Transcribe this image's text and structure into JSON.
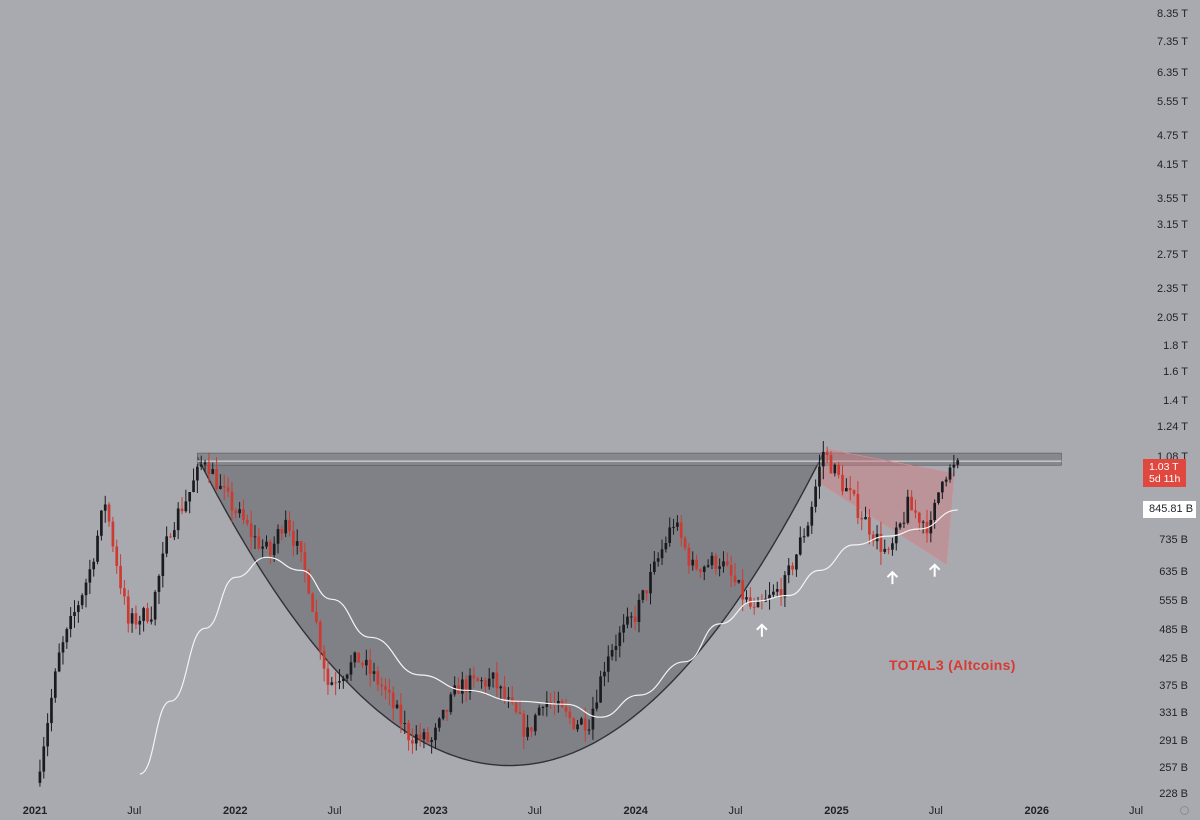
{
  "chart_data": {
    "type": "candlestick",
    "title": "",
    "xlabel": "",
    "ylabel": "",
    "y_scale": "log",
    "ylim": [
      220,
      8700
    ],
    "y_ticks": [
      "8.35 T",
      "7.35 T",
      "6.35 T",
      "5.55 T",
      "4.75 T",
      "4.15 T",
      "3.55 T",
      "3.15 T",
      "2.75 T",
      "2.35 T",
      "2.05 T",
      "1.8 T",
      "1.6 T",
      "1.4 T",
      "1.24 T",
      "1.08 T",
      "735 B",
      "635 B",
      "555 B",
      "485 B",
      "425 B",
      "375 B",
      "331 B",
      "291 B",
      "257 B",
      "228 B"
    ],
    "y_tick_values": [
      8350,
      7350,
      6350,
      5550,
      4750,
      4150,
      3550,
      3150,
      2750,
      2350,
      2050,
      1800,
      1600,
      1400,
      1240,
      1080,
      735,
      635,
      555,
      485,
      425,
      375,
      331,
      291,
      257,
      228
    ],
    "x_ticks": [
      {
        "label": "2021",
        "date": "2021-01-01",
        "year": true
      },
      {
        "label": "Jul",
        "date": "2021-07-01",
        "year": false
      },
      {
        "label": "2022",
        "date": "2022-01-01",
        "year": true
      },
      {
        "label": "Jul",
        "date": "2022-07-01",
        "year": false
      },
      {
        "label": "2023",
        "date": "2023-01-01",
        "year": true
      },
      {
        "label": "Jul",
        "date": "2023-07-01",
        "year": false
      },
      {
        "label": "2024",
        "date": "2024-01-01",
        "year": true
      },
      {
        "label": "Jul",
        "date": "2024-07-01",
        "year": false
      },
      {
        "label": "2025",
        "date": "2025-01-01",
        "year": true
      },
      {
        "label": "Jul",
        "date": "2025-07-01",
        "year": false
      },
      {
        "label": "2026",
        "date": "2026-01-01",
        "year": true
      },
      {
        "label": "Jul",
        "date": "2026-07-01",
        "year": false
      }
    ],
    "close_path": [
      [
        "2021-01-03",
        240
      ],
      [
        "2021-02-14",
        430
      ],
      [
        "2021-04-11",
        640
      ],
      [
        "2021-05-09",
        880
      ],
      [
        "2021-06-20",
        500
      ],
      [
        "2021-08-01",
        530
      ],
      [
        "2021-09-05",
        780
      ],
      [
        "2021-10-10",
        920
      ],
      [
        "2021-11-07",
        1080
      ],
      [
        "2021-12-05",
        930
      ],
      [
        "2022-01-09",
        820
      ],
      [
        "2022-02-06",
        740
      ],
      [
        "2022-03-06",
        690
      ],
      [
        "2022-04-03",
        830
      ],
      [
        "2022-05-15",
        600
      ],
      [
        "2022-06-19",
        380
      ],
      [
        "2022-08-14",
        425
      ],
      [
        "2022-09-25",
        375
      ],
      [
        "2022-11-13",
        300
      ],
      [
        "2022-12-25",
        290
      ],
      [
        "2023-02-12",
        375
      ],
      [
        "2023-04-16",
        385
      ],
      [
        "2023-06-18",
        300
      ],
      [
        "2023-07-16",
        355
      ],
      [
        "2023-09-10",
        318
      ],
      [
        "2023-10-08",
        320
      ],
      [
        "2023-11-12",
        440
      ],
      [
        "2023-12-31",
        520
      ],
      [
        "2024-03-10",
        800
      ],
      [
        "2024-04-14",
        650
      ],
      [
        "2024-06-02",
        670
      ],
      [
        "2024-08-04",
        525
      ],
      [
        "2024-09-29",
        600
      ],
      [
        "2024-11-10",
        800
      ],
      [
        "2024-12-08",
        1110
      ],
      [
        "2025-01-05",
        980
      ],
      [
        "2025-02-09",
        850
      ],
      [
        "2025-04-06",
        680
      ],
      [
        "2025-05-11",
        860
      ],
      [
        "2025-06-22",
        780
      ],
      [
        "2025-07-13",
        1000
      ],
      [
        "2025-08-10",
        1030
      ]
    ],
    "moving_average": [
      [
        "2021-07-11",
        250
      ],
      [
        "2021-09-05",
        350
      ],
      [
        "2021-11-07",
        490
      ],
      [
        "2022-01-02",
        620
      ],
      [
        "2022-02-27",
        680
      ],
      [
        "2022-05-01",
        640
      ],
      [
        "2022-06-26",
        560
      ],
      [
        "2022-09-04",
        470
      ],
      [
        "2022-12-04",
        395
      ],
      [
        "2023-02-26",
        368
      ],
      [
        "2023-05-28",
        350
      ],
      [
        "2023-08-27",
        345
      ],
      [
        "2023-10-29",
        325
      ],
      [
        "2024-01-07",
        360
      ],
      [
        "2024-03-31",
        420
      ],
      [
        "2024-06-02",
        500
      ],
      [
        "2024-08-04",
        555
      ],
      [
        "2024-10-06",
        570
      ],
      [
        "2024-12-01",
        640
      ],
      [
        "2025-02-02",
        720
      ],
      [
        "2025-04-06",
        750
      ],
      [
        "2025-06-01",
        775
      ],
      [
        "2025-08-10",
        845.81
      ]
    ],
    "current_price": "1.03 T",
    "countdown": "5d 11h",
    "moving_average_value": "845.81 B",
    "annotation": "TOTAL3 (Altcoins)",
    "resistance_zone": {
      "low": 1040,
      "high": 1100,
      "from": "2021-10-24",
      "to": "2026-02-15"
    },
    "resistance_line": 1060,
    "cup_curve": [
      [
        "2021-10-24",
        1080
      ],
      [
        "2023-05-14",
        260
      ],
      [
        "2024-12-08",
        1100
      ]
    ],
    "handle_channel_upper": [
      [
        "2024-12-15",
        1120
      ],
      [
        "2025-08-03",
        1000
      ]
    ],
    "handle_channel_lower": [
      [
        "2024-12-01",
        960
      ],
      [
        "2025-07-20",
        660
      ]
    ],
    "support_arrows": [
      [
        "2024-08-18",
        498
      ],
      [
        "2025-04-13",
        635
      ],
      [
        "2025-06-29",
        657
      ]
    ],
    "colors": {
      "background": "#a8aab0",
      "bull_candle": "#1a1b1f",
      "bear_candle": "#cc3b31",
      "moving_average": "#f4f4f4",
      "cup_fill": "#56575c",
      "resistance": "#6b6c72",
      "handle_box": "#d07b7e",
      "price_tag": "#e0473e",
      "annotation": "#d83a32"
    }
  }
}
